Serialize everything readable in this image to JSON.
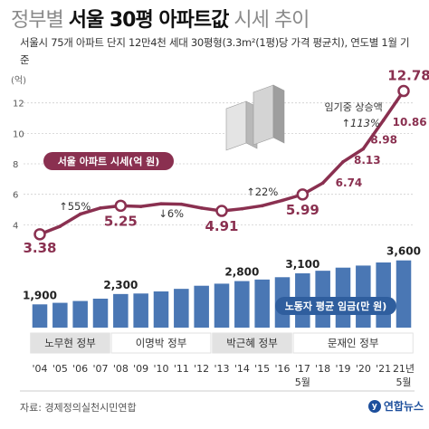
{
  "title": {
    "pre": "정부별",
    "main": "서울 30평 아파트값",
    "post": "시세 추이"
  },
  "subtitle": "서울시 75개 아파트 단지 12만4천 세대 30평형(3.3m²(1평)당 가격 평균치), 연도별 1월 기준",
  "source": "자료: 경제정의실천시민연합",
  "logo": "연합뉴스",
  "colors": {
    "line": "#8a3050",
    "bar": "#4a77b4",
    "bar_light": "#8fb0da",
    "highlight": "#8a3050",
    "gov_band": "#dcdcdc"
  },
  "chart_data": {
    "type": "line",
    "title": "",
    "categories": [
      "'04",
      "'05",
      "'06",
      "'07",
      "'08",
      "'09",
      "'10",
      "'11",
      "'12",
      "'13",
      "'14",
      "'15",
      "'16",
      "'17 5월",
      "'18",
      "'19",
      "'20",
      "'21",
      "21년 5월"
    ],
    "y_unit": "(억)",
    "y_ticks": [
      4,
      6,
      8,
      10,
      12
    ],
    "ylim": [
      2.3,
      14
    ],
    "series": [
      {
        "name": "서울 아파트 시세(억 원)",
        "values": [
          3.38,
          3.9,
          4.7,
          5.1,
          5.25,
          5.2,
          5.38,
          5.35,
          5.1,
          4.91,
          5.05,
          5.25,
          5.6,
          5.99,
          6.74,
          8.13,
          8.98,
          10.86,
          12.78
        ],
        "labels": [
          {
            "index": 0,
            "text": "3.38"
          },
          {
            "index": 4,
            "text": "5.25"
          },
          {
            "index": 9,
            "text": "4.91"
          },
          {
            "index": 13,
            "text": "5.99"
          },
          {
            "index": 14,
            "text": "6.74"
          },
          {
            "index": 15,
            "text": "8.13"
          },
          {
            "index": 16,
            "text": "8.98"
          },
          {
            "index": 17,
            "text": "10.86"
          },
          {
            "index": 18,
            "text": "12.78"
          }
        ]
      }
    ],
    "bars": {
      "name": "노동자 평균 임금(만 원)",
      "values": [
        1900,
        1960,
        2030,
        2120,
        2300,
        2320,
        2400,
        2500,
        2620,
        2700,
        2800,
        2860,
        2950,
        3100,
        3200,
        3320,
        3400,
        3520,
        3600
      ],
      "labels": [
        {
          "index": 0,
          "text": "1,900"
        },
        {
          "index": 4,
          "text": "2,300"
        },
        {
          "index": 10,
          "text": "2,800"
        },
        {
          "index": 13,
          "text": "3,100"
        },
        {
          "index": 18,
          "text": "3,600"
        }
      ]
    },
    "annotations": [
      {
        "text": "↑55%",
        "between": [
          0,
          4
        ]
      },
      {
        "text": "↓6%",
        "between": [
          4,
          9
        ]
      },
      {
        "text": "↑22%",
        "between": [
          9,
          13
        ]
      },
      {
        "text": "임기중 상승액",
        "between": [
          13,
          18
        ]
      },
      {
        "text": "↑113%",
        "between": [
          13,
          18
        ]
      }
    ],
    "governments": [
      {
        "name": "노무현 정부",
        "start": 0,
        "end": 3
      },
      {
        "name": "이명박 정부",
        "start": 4,
        "end": 8
      },
      {
        "name": "박근혜 정부",
        "start": 9,
        "end": 12
      },
      {
        "name": "문재인 정부",
        "start": 13,
        "end": 18
      }
    ]
  }
}
